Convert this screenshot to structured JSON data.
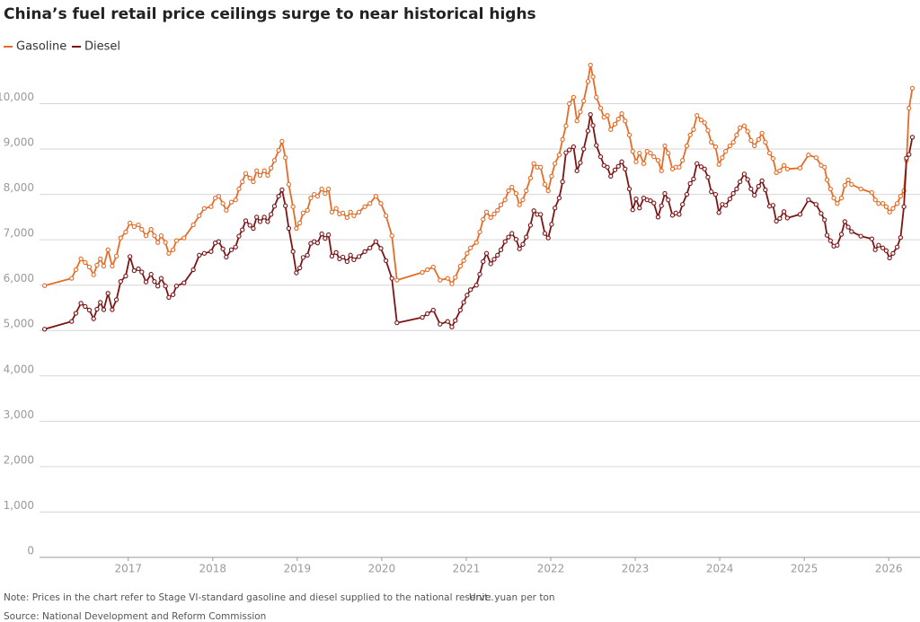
{
  "chart_data": {
    "type": "line",
    "title": "China’s fuel retail price ceilings surge to near historical highs",
    "note": "Note: Prices in the chart refer to Stage VI-standard gasoline and diesel supplied to the national reserve.",
    "unit": "Unit: yuan per ton",
    "source": "Source: National Development and Reform Commission",
    "xlim": [
      2015.95,
      2026.37
    ],
    "xticks": [
      2017,
      2018,
      2019,
      2020,
      2021,
      2022,
      2023,
      2024,
      2025,
      2026
    ],
    "ylim": [
      0,
      10900
    ],
    "yticks": [
      0,
      {
        "value": 1000,
        "label": "1,000"
      },
      {
        "value": 2000,
        "label": "2,000"
      },
      {
        "value": 3000,
        "label": "3,000"
      },
      {
        "value": 4000,
        "label": "4,000"
      },
      {
        "value": 5000,
        "label": "5,000"
      },
      {
        "value": 6000,
        "label": "6,000"
      },
      {
        "value": 7000,
        "label": "7,000"
      },
      {
        "value": 8000,
        "label": "8,000"
      },
      {
        "value": 9000,
        "label": "9,000"
      },
      {
        "value": 10000,
        "label": "10,000"
      }
    ],
    "grid": true,
    "legend": "top-left",
    "x": [
      2016.01,
      2016.33,
      2016.38,
      2016.44,
      2016.49,
      2016.54,
      2016.59,
      2016.63,
      2016.67,
      2016.71,
      2016.76,
      2016.81,
      2016.86,
      2016.91,
      2016.97,
      2017.02,
      2017.07,
      2017.12,
      2017.16,
      2017.21,
      2017.27,
      2017.31,
      2017.35,
      2017.39,
      2017.44,
      2017.48,
      2017.53,
      2017.57,
      2017.66,
      2017.77,
      2017.84,
      2017.9,
      2017.98,
      2018.03,
      2018.07,
      2018.12,
      2018.16,
      2018.22,
      2018.27,
      2018.31,
      2018.35,
      2018.39,
      2018.44,
      2018.48,
      2018.52,
      2018.56,
      2018.61,
      2018.65,
      2018.69,
      2018.73,
      2018.78,
      2018.82,
      2018.86,
      2018.9,
      2018.95,
      2018.99,
      2019.03,
      2019.07,
      2019.12,
      2019.16,
      2019.2,
      2019.24,
      2019.29,
      2019.33,
      2019.37,
      2019.41,
      2019.46,
      2019.5,
      2019.54,
      2019.59,
      2019.63,
      2019.67,
      2019.73,
      2019.8,
      2019.86,
      2019.93,
      2019.99,
      2020.05,
      2020.12,
      2020.18,
      2020.48,
      2020.54,
      2020.61,
      2020.69,
      2020.78,
      2020.83,
      2020.87,
      2020.93,
      2020.97,
      2021.01,
      2021.05,
      2021.12,
      2021.16,
      2021.2,
      2021.24,
      2021.29,
      2021.33,
      2021.37,
      2021.41,
      2021.46,
      2021.5,
      2021.54,
      2021.59,
      2021.63,
      2021.67,
      2021.71,
      2021.76,
      2021.8,
      2021.84,
      2021.88,
      2021.93,
      2021.97,
      2022.01,
      2022.05,
      2022.1,
      2022.14,
      2022.18,
      2022.22,
      2022.27,
      2022.31,
      2022.35,
      2022.39,
      2022.44,
      2022.47,
      2022.5,
      2022.54,
      2022.59,
      2022.63,
      2022.67,
      2022.71,
      2022.76,
      2022.8,
      2022.84,
      2022.88,
      2022.93,
      2022.97,
      2023.01,
      2023.05,
      2023.1,
      2023.14,
      2023.18,
      2023.22,
      2023.27,
      2023.31,
      2023.35,
      2023.39,
      2023.44,
      2023.48,
      2023.52,
      2023.56,
      2023.61,
      2023.65,
      2023.69,
      2023.73,
      2023.78,
      2023.82,
      2023.86,
      2023.9,
      2023.95,
      2023.99,
      2024.03,
      2024.07,
      2024.12,
      2024.16,
      2024.2,
      2024.24,
      2024.29,
      2024.33,
      2024.37,
      2024.41,
      2024.46,
      2024.5,
      2024.54,
      2024.59,
      2024.63,
      2024.67,
      2024.71,
      2024.76,
      2024.8,
      2024.95,
      2025.05,
      2025.14,
      2025.2,
      2025.24,
      2025.27,
      2025.31,
      2025.35,
      2025.39,
      2025.44,
      2025.48,
      2025.52,
      2025.56,
      2025.67,
      2025.8,
      2025.84,
      2025.88,
      2025.93,
      2025.97,
      2026.01,
      2026.05,
      2026.1,
      2026.14,
      2026.18,
      2026.21,
      2026.24,
      2026.28
    ],
    "series": [
      {
        "name": "Gasoline",
        "color": "#e56c27",
        "values": [
          5990,
          6150,
          6340,
          6580,
          6500,
          6400,
          6230,
          6440,
          6580,
          6420,
          6780,
          6420,
          6640,
          7040,
          7170,
          7370,
          7290,
          7330,
          7230,
          7090,
          7230,
          7090,
          6940,
          7090,
          6940,
          6700,
          6780,
          6980,
          7040,
          7330,
          7530,
          7690,
          7730,
          7920,
          7960,
          7800,
          7650,
          7830,
          7880,
          8120,
          8280,
          8460,
          8360,
          8280,
          8520,
          8420,
          8520,
          8420,
          8580,
          8750,
          8970,
          9170,
          8810,
          8220,
          7730,
          7250,
          7370,
          7590,
          7650,
          7920,
          8000,
          7960,
          8120,
          8020,
          8120,
          7610,
          7690,
          7570,
          7590,
          7490,
          7610,
          7530,
          7610,
          7730,
          7800,
          7960,
          7800,
          7530,
          7090,
          6110,
          6280,
          6340,
          6400,
          6110,
          6150,
          6030,
          6170,
          6420,
          6540,
          6700,
          6820,
          6940,
          7170,
          7450,
          7610,
          7490,
          7570,
          7650,
          7770,
          7880,
          8080,
          8160,
          8020,
          7770,
          7880,
          8080,
          8360,
          8680,
          8600,
          8600,
          8220,
          8080,
          8400,
          8680,
          8870,
          9210,
          9510,
          10000,
          10140,
          9620,
          9820,
          10060,
          10490,
          10850,
          10590,
          10140,
          9900,
          9700,
          9740,
          9430,
          9550,
          9660,
          9780,
          9620,
          9310,
          8950,
          8720,
          8910,
          8680,
          8950,
          8910,
          8830,
          8750,
          8520,
          9070,
          8910,
          8560,
          8600,
          8600,
          8750,
          9070,
          9310,
          9430,
          9740,
          9640,
          9580,
          9410,
          9150,
          9050,
          8660,
          8810,
          8950,
          9070,
          9150,
          9310,
          9470,
          9510,
          9390,
          9190,
          9070,
          9210,
          9350,
          9150,
          8910,
          8790,
          8480,
          8520,
          8640,
          8560,
          8580,
          8870,
          8810,
          8640,
          8600,
          8320,
          8120,
          7920,
          7800,
          7920,
          8200,
          8320,
          8220,
          8120,
          8040,
          7880,
          7800,
          7800,
          7730,
          7610,
          7690,
          7800,
          7960,
          8080,
          8750,
          9900,
          10340
        ]
      },
      {
        "name": "Diesel",
        "color": "#7c1416",
        "values": [
          5030,
          5200,
          5380,
          5600,
          5530,
          5450,
          5260,
          5470,
          5620,
          5460,
          5820,
          5460,
          5680,
          6080,
          6200,
          6630,
          6320,
          6360,
          6290,
          6070,
          6240,
          6080,
          5980,
          6150,
          5980,
          5730,
          5790,
          5980,
          6050,
          6340,
          6660,
          6700,
          6740,
          6930,
          6960,
          6800,
          6620,
          6780,
          6840,
          7080,
          7220,
          7420,
          7320,
          7250,
          7500,
          7400,
          7500,
          7400,
          7560,
          7740,
          7960,
          8100,
          7750,
          7250,
          6740,
          6270,
          6380,
          6610,
          6660,
          6920,
          6960,
          6930,
          7130,
          7030,
          7110,
          6640,
          6720,
          6580,
          6620,
          6520,
          6660,
          6560,
          6630,
          6740,
          6820,
          6960,
          6810,
          6540,
          6150,
          5170,
          5290,
          5370,
          5450,
          5140,
          5200,
          5080,
          5220,
          5450,
          5620,
          5780,
          5900,
          6000,
          6240,
          6520,
          6700,
          6470,
          6570,
          6660,
          6780,
          6960,
          7060,
          7140,
          7010,
          6800,
          6900,
          7060,
          7320,
          7640,
          7560,
          7560,
          7140,
          7040,
          7340,
          7700,
          7920,
          8280,
          8920,
          8980,
          9050,
          8520,
          8700,
          9000,
          9400,
          9760,
          9520,
          9080,
          8830,
          8640,
          8600,
          8400,
          8540,
          8620,
          8720,
          8560,
          8120,
          7660,
          7900,
          7700,
          7920,
          7880,
          7860,
          7810,
          7500,
          7750,
          8020,
          7880,
          7540,
          7590,
          7560,
          7780,
          8000,
          8240,
          8340,
          8680,
          8610,
          8560,
          8380,
          8060,
          8000,
          7600,
          7780,
          7760,
          7900,
          8020,
          8120,
          8280,
          8450,
          8330,
          8120,
          7980,
          8180,
          8300,
          8100,
          7740,
          7760,
          7410,
          7470,
          7620,
          7480,
          7560,
          7880,
          7780,
          7580,
          7440,
          7100,
          6980,
          6860,
          6880,
          7120,
          7400,
          7280,
          7180,
          7080,
          7020,
          6780,
          6880,
          6820,
          6760,
          6600,
          6700,
          6840,
          7050,
          7730,
          8800,
          8880,
          9260
        ]
      }
    ]
  }
}
